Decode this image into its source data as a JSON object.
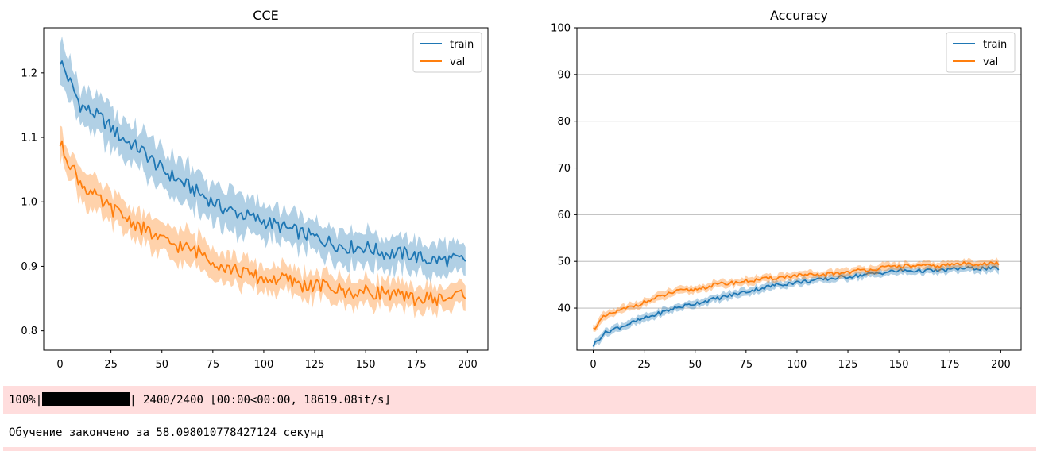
{
  "chart_data": [
    {
      "type": "line",
      "title": "CCE",
      "xlabel": "",
      "ylabel": "",
      "xlim": [
        -8,
        210
      ],
      "ylim": [
        0.77,
        1.27
      ],
      "xticks": [
        0,
        25,
        50,
        75,
        100,
        125,
        150,
        175,
        200
      ],
      "yticks": [
        0.8,
        0.9,
        1.0,
        1.1,
        1.2
      ],
      "grid": false,
      "legend": "top-right",
      "series": [
        {
          "name": "train",
          "color": "#1f77b4",
          "x": [
            0,
            10,
            20,
            30,
            40,
            50,
            60,
            70,
            80,
            90,
            100,
            110,
            120,
            130,
            140,
            150,
            160,
            170,
            180,
            190,
            199
          ],
          "values": [
            1.22,
            1.15,
            1.13,
            1.1,
            1.08,
            1.05,
            1.03,
            1.01,
            0.99,
            0.98,
            0.97,
            0.96,
            0.95,
            0.94,
            0.93,
            0.93,
            0.92,
            0.92,
            0.91,
            0.91,
            0.91
          ],
          "band": [
            0.03,
            0.03,
            0.03,
            0.03,
            0.03,
            0.03,
            0.03,
            0.03,
            0.03,
            0.03,
            0.025,
            0.025,
            0.025,
            0.025,
            0.025,
            0.025,
            0.025,
            0.025,
            0.025,
            0.025,
            0.02
          ]
        },
        {
          "name": "val",
          "color": "#ff7f0e",
          "x": [
            0,
            10,
            20,
            30,
            40,
            50,
            60,
            70,
            80,
            90,
            100,
            110,
            120,
            130,
            140,
            150,
            160,
            170,
            180,
            190,
            199
          ],
          "values": [
            1.09,
            1.03,
            1.0,
            0.98,
            0.96,
            0.94,
            0.93,
            0.92,
            0.9,
            0.89,
            0.88,
            0.88,
            0.87,
            0.87,
            0.86,
            0.86,
            0.86,
            0.85,
            0.85,
            0.85,
            0.86
          ],
          "band": [
            0.025,
            0.025,
            0.025,
            0.025,
            0.025,
            0.025,
            0.025,
            0.025,
            0.025,
            0.02,
            0.02,
            0.02,
            0.02,
            0.02,
            0.02,
            0.02,
            0.02,
            0.02,
            0.02,
            0.02,
            0.02
          ]
        }
      ]
    },
    {
      "type": "line",
      "title": "Accuracy",
      "xlabel": "",
      "ylabel": "",
      "xlim": [
        -8,
        210
      ],
      "ylim": [
        31,
        100
      ],
      "xticks": [
        0,
        25,
        50,
        75,
        100,
        125,
        150,
        175,
        200
      ],
      "yticks": [
        40,
        50,
        60,
        70,
        80,
        90,
        100
      ],
      "grid": "y",
      "legend": "top-right",
      "series": [
        {
          "name": "train",
          "color": "#1f77b4",
          "x": [
            0,
            5,
            10,
            20,
            30,
            40,
            50,
            60,
            70,
            80,
            90,
            100,
            110,
            120,
            130,
            140,
            150,
            160,
            170,
            180,
            190,
            199
          ],
          "values": [
            32,
            34.5,
            35.5,
            37,
            38.5,
            40,
            41,
            42,
            43,
            44,
            45,
            45.5,
            46,
            46.5,
            47,
            47.5,
            48,
            48,
            48,
            48.5,
            48.5,
            48.5
          ],
          "band": [
            0.8,
            0.8,
            0.8,
            0.8,
            0.8,
            0.8,
            0.8,
            0.8,
            0.8,
            0.8,
            0.8,
            0.8,
            0.8,
            0.8,
            0.8,
            0.8,
            0.8,
            0.8,
            0.8,
            0.8,
            0.8,
            0.8
          ]
        },
        {
          "name": "val",
          "color": "#ff7f0e",
          "x": [
            0,
            5,
            10,
            20,
            30,
            40,
            50,
            60,
            70,
            80,
            90,
            100,
            110,
            120,
            130,
            140,
            150,
            160,
            170,
            180,
            190,
            199
          ],
          "values": [
            35.5,
            38,
            39,
            40.5,
            42,
            43.5,
            44,
            45,
            45.5,
            46,
            46.5,
            47,
            47,
            47.5,
            48,
            48.5,
            49,
            49,
            49,
            49.5,
            49.5,
            49.5
          ],
          "band": [
            0.8,
            0.8,
            0.8,
            0.8,
            0.8,
            0.8,
            0.8,
            0.8,
            0.8,
            0.8,
            0.8,
            0.8,
            0.8,
            0.8,
            0.8,
            0.8,
            0.8,
            0.8,
            0.8,
            0.8,
            0.8,
            0.8
          ]
        }
      ]
    }
  ],
  "output": {
    "progress_percent": "100%",
    "progress_bar_left": "|",
    "progress_bar_right": "|",
    "progress_fraction": 1.0,
    "progress_text": " 2400/2400 [00:00<00:00, 18619.08it/s]",
    "training_done": "Обучение закончено за 58.098010778427124 секунд"
  }
}
